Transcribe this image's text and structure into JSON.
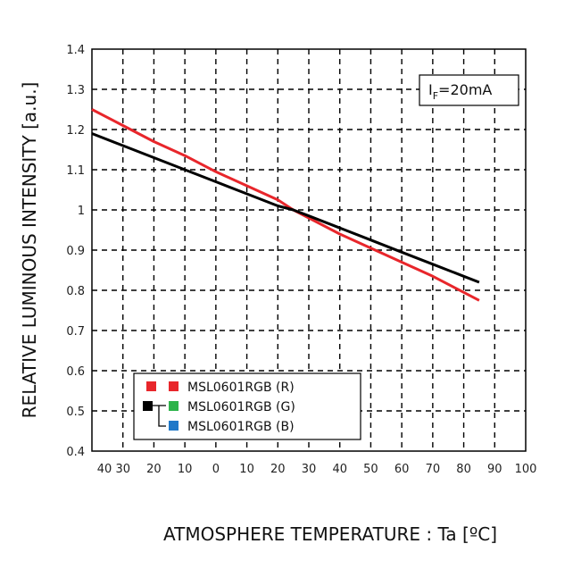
{
  "chart_data": {
    "type": "line",
    "title": "",
    "xlabel": "ATMOSPHERE TEMPERATURE : Ta [ºC]",
    "ylabel": "RELATIVE LUMINOUS INTENSITY [a.u.]",
    "xlim": [
      -40,
      100
    ],
    "ylim": [
      0.4,
      1.4
    ],
    "x_ticks": [
      -40,
      -30,
      -20,
      -10,
      0,
      10,
      20,
      30,
      40,
      50,
      60,
      70,
      80,
      90,
      100
    ],
    "x_tick_labels": [
      "40",
      "30",
      "20",
      "10",
      "0",
      "10",
      "20",
      "30",
      "40",
      "50",
      "60",
      "70",
      "80",
      "90",
      "100"
    ],
    "y_ticks": [
      0.4,
      0.5,
      0.6,
      0.7,
      0.8,
      0.9,
      1.0,
      1.1,
      1.2,
      1.3,
      1.4
    ],
    "y_tick_labels": [
      "0.4",
      "0.5",
      "0.6",
      "0.7",
      "0.8",
      "0.9",
      "1",
      "1.1",
      "1.2",
      "1.3",
      "1.4"
    ],
    "grid": true,
    "condition_prefix": "I",
    "condition_subscript": "F",
    "condition_suffix": "=20mA",
    "legend_position": "lower-left",
    "legend": [
      {
        "label": "MSL0601RGB (R)",
        "color": "#e8262b"
      },
      {
        "label": "MSL0601RGB (G)",
        "color": "#2db34a"
      },
      {
        "label": "MSL0601RGB (B)",
        "color": "#1f78c8"
      }
    ],
    "legend_gb_marker_color": "#000000",
    "series": [
      {
        "color": "#e8262b",
        "x": [
          -40,
          -30,
          -20,
          -10,
          0,
          10,
          20,
          25,
          30,
          40,
          50,
          60,
          70,
          80,
          85
        ],
        "y": [
          1.25,
          1.21,
          1.17,
          1.135,
          1.095,
          1.06,
          1.025,
          1.0,
          0.98,
          0.94,
          0.905,
          0.87,
          0.835,
          0.795,
          0.775
        ]
      },
      {
        "color": "#000000",
        "x": [
          -40,
          -30,
          -20,
          -10,
          0,
          10,
          20,
          25,
          30,
          40,
          50,
          60,
          70,
          80,
          85
        ],
        "y": [
          1.19,
          1.16,
          1.13,
          1.1,
          1.07,
          1.04,
          1.01,
          1.0,
          0.985,
          0.955,
          0.925,
          0.895,
          0.865,
          0.835,
          0.82
        ]
      }
    ]
  }
}
